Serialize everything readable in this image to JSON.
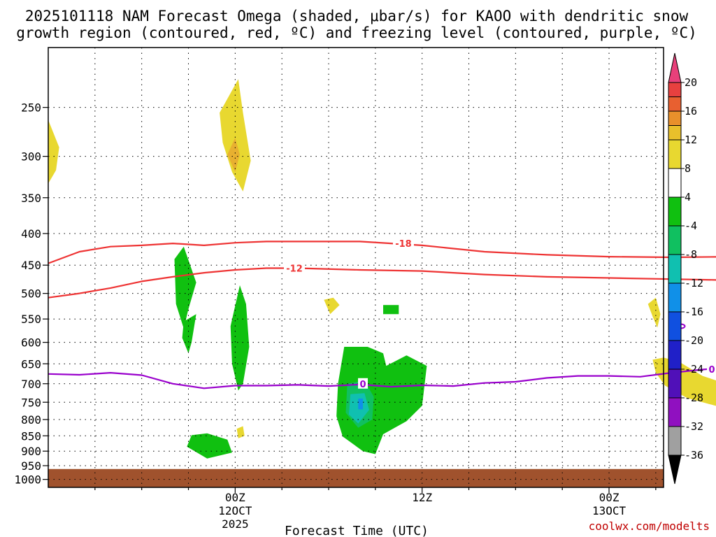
{
  "title_line1": "2025101118 NAM Forecast Omega (shaded, μbar/s) for KAOO with dendritic snow",
  "title_line2": "growth region (contoured, red, ºC) and freezing level (contoured, purple, ºC)",
  "credit": "coolwx.com/modelts",
  "chart_data": {
    "type": "time-height",
    "x_label": "Forecast Time (UTC)",
    "x_range_hours": [
      -12.0,
      27.5
    ],
    "y_label": "Pressure (hPa)",
    "y_range": [
      200,
      1030
    ],
    "y_ticks": [
      250,
      300,
      350,
      400,
      450,
      500,
      550,
      600,
      650,
      700,
      750,
      800,
      850,
      900,
      950,
      1000
    ],
    "x_ticks": [
      {
        "h": 0,
        "l1": "00Z",
        "l2": "12OCT",
        "l3": "2025"
      },
      {
        "h": 12,
        "l1": "12Z",
        "l2": "",
        "l3": ""
      },
      {
        "h": 24,
        "l1": "00Z",
        "l2": "13OCT",
        "l3": ""
      },
      {
        "h": 36,
        "l1": "12Z",
        "l2": "",
        "l3": ""
      },
      {
        "h": 48,
        "l1": "00Z",
        "l2": "14OCT",
        "l3": ""
      },
      {
        "h": 60,
        "l1": "12Z",
        "l2": "",
        "l3": ""
      },
      {
        "h": 72,
        "l1": "00Z",
        "l2": "15OCT",
        "l3": ""
      }
    ],
    "colorbar": {
      "labels": [
        "20",
        "16",
        "12",
        "8",
        "4",
        "-4",
        "-8",
        "-12",
        "-16",
        "-20",
        "-24",
        "-28",
        "-32",
        "-36"
      ],
      "colors": [
        "#e8407a",
        "#e8403f",
        "#e86030",
        "#e8902b",
        "#e8c02b",
        "#e8d830",
        "#ffffff",
        "#10c010",
        "#10c060",
        "#10c0b0",
        "#1090e8",
        "#1050e0",
        "#2020c8",
        "#5010b8",
        "#9010c0",
        "#a0a0a0",
        "#000000"
      ]
    },
    "contours": [
      {
        "name": "-18 °C isotherm",
        "color": "#ee3333",
        "label": "-18",
        "points": [
          [
            -12,
            447
          ],
          [
            -10,
            428
          ],
          [
            -8,
            420
          ],
          [
            -6,
            418
          ],
          [
            -4,
            415
          ],
          [
            -2,
            418
          ],
          [
            0,
            414
          ],
          [
            2,
            412
          ],
          [
            4,
            412
          ],
          [
            8,
            412
          ],
          [
            12,
            418
          ],
          [
            16,
            428
          ],
          [
            20,
            433
          ],
          [
            24,
            436
          ],
          [
            28,
            437
          ],
          [
            32,
            436
          ],
          [
            34,
            434
          ],
          [
            36,
            425
          ],
          [
            37,
            413
          ],
          [
            38.5,
            408
          ],
          [
            40,
            413
          ],
          [
            41.5,
            426
          ],
          [
            43,
            431
          ],
          [
            45,
            425
          ],
          [
            48,
            416
          ],
          [
            50,
            413
          ],
          [
            52,
            415
          ],
          [
            55,
            412
          ],
          [
            58,
            415
          ],
          [
            61,
            414
          ],
          [
            64,
            418
          ],
          [
            68,
            416
          ],
          [
            71,
            422
          ],
          [
            73,
            426
          ],
          [
            75,
            438
          ],
          [
            76.5,
            430
          ],
          [
            78,
            433
          ],
          [
            80,
            428
          ],
          [
            82,
            434
          ],
          [
            84,
            436
          ]
        ]
      },
      {
        "name": "-12 °C isotherm",
        "color": "#ee3333",
        "label": "-12",
        "points": [
          [
            -12,
            508
          ],
          [
            -10,
            500
          ],
          [
            -8,
            490
          ],
          [
            -6,
            478
          ],
          [
            -4,
            470
          ],
          [
            -2,
            463
          ],
          [
            0,
            458
          ],
          [
            2,
            455
          ],
          [
            4,
            455
          ],
          [
            8,
            458
          ],
          [
            12,
            460
          ],
          [
            16,
            466
          ],
          [
            20,
            470
          ],
          [
            24,
            472
          ],
          [
            28,
            474
          ],
          [
            32,
            476
          ],
          [
            36,
            473
          ],
          [
            40,
            476
          ],
          [
            44,
            476
          ],
          [
            48,
            467
          ],
          [
            52,
            460
          ],
          [
            56,
            455
          ],
          [
            60,
            455
          ],
          [
            64,
            458
          ],
          [
            68,
            460
          ],
          [
            72,
            468
          ],
          [
            76,
            472
          ],
          [
            80,
            477
          ],
          [
            84,
            482
          ]
        ]
      },
      {
        "name": "0 °C freezing level",
        "color": "#9900cc",
        "label": "0",
        "points": [
          [
            -12,
            675
          ],
          [
            -10,
            677
          ],
          [
            -8,
            672
          ],
          [
            -6,
            678
          ],
          [
            -4,
            700
          ],
          [
            -2,
            712
          ],
          [
            0,
            705
          ],
          [
            2,
            705
          ],
          [
            4,
            703
          ],
          [
            6,
            706
          ],
          [
            8,
            702
          ],
          [
            10,
            708
          ],
          [
            12,
            704
          ],
          [
            14,
            706
          ],
          [
            16,
            698
          ],
          [
            18,
            695
          ],
          [
            20,
            685
          ],
          [
            22,
            680
          ],
          [
            24,
            680
          ],
          [
            26,
            682
          ],
          [
            28,
            672
          ],
          [
            30,
            664
          ],
          [
            32,
            658
          ],
          [
            34,
            660
          ],
          [
            36,
            657
          ],
          [
            38,
            650
          ],
          [
            40,
            647
          ],
          [
            42,
            642
          ],
          [
            44,
            640
          ],
          [
            46,
            636
          ],
          [
            48,
            620
          ],
          [
            50,
            614
          ],
          [
            52,
            607
          ],
          [
            53.5,
            604
          ],
          [
            54.5,
            616
          ],
          [
            56,
            612
          ],
          [
            58,
            610
          ],
          [
            60,
            608
          ],
          [
            62,
            575
          ],
          [
            64,
            578
          ],
          [
            66,
            583
          ],
          [
            68,
            577
          ],
          [
            70,
            585
          ],
          [
            72,
            583
          ],
          [
            74,
            595
          ],
          [
            76,
            610
          ],
          [
            78,
            620
          ],
          [
            80,
            628
          ],
          [
            82,
            635
          ],
          [
            84,
            640
          ]
        ]
      }
    ],
    "omega_areas": [
      {
        "color": "#e8d830",
        "points": [
          [
            -12,
            262
          ],
          [
            -11.3,
            290
          ],
          [
            -11.5,
            316
          ],
          [
            -12,
            332
          ]
        ]
      },
      {
        "color": "#e8d830",
        "points": [
          [
            -1,
            255
          ],
          [
            0.2,
            225
          ],
          [
            0.5,
            255
          ],
          [
            1,
            305
          ],
          [
            0.5,
            342
          ],
          [
            -0.2,
            318
          ],
          [
            -0.8,
            285
          ]
        ]
      },
      {
        "color": "#e8b030",
        "points": [
          [
            -0.5,
            298
          ],
          [
            0,
            280
          ],
          [
            0.3,
            298
          ],
          [
            0,
            318
          ]
        ]
      },
      {
        "color": "#e8d830",
        "points": [
          [
            0.1,
            828
          ],
          [
            0.5,
            820
          ],
          [
            0.6,
            850
          ],
          [
            0.2,
            858
          ]
        ]
      },
      {
        "color": "#e8d830",
        "points": [
          [
            5.7,
            512
          ],
          [
            6.3,
            508
          ],
          [
            6.7,
            522
          ],
          [
            6.1,
            540
          ]
        ]
      },
      {
        "color": "#e8d830",
        "points": [
          [
            26.5,
            520
          ],
          [
            27,
            508
          ],
          [
            27.3,
            540
          ],
          [
            27.1,
            568
          ],
          [
            26.8,
            545
          ]
        ]
      },
      {
        "color": "#e8d830",
        "points": [
          [
            26.8,
            640
          ],
          [
            27.5,
            635
          ],
          [
            28.5,
            645
          ],
          [
            30,
            680
          ],
          [
            33,
            720
          ],
          [
            34.2,
            712
          ],
          [
            34,
            760
          ],
          [
            31,
            762
          ],
          [
            29,
            738
          ],
          [
            27.6,
            705
          ],
          [
            27,
            672
          ]
        ]
      },
      {
        "color": "#e8d830",
        "points": [
          [
            35.5,
            782
          ],
          [
            36.3,
            780
          ],
          [
            37,
            790
          ],
          [
            36.5,
            800
          ],
          [
            35.7,
            802
          ]
        ]
      },
      {
        "color": "#e8d830",
        "points": [
          [
            52,
            776
          ],
          [
            55.5,
            776
          ],
          [
            55.5,
            800
          ],
          [
            52,
            800
          ]
        ]
      },
      {
        "color": "#e8d830",
        "points": [
          [
            60.2,
            780
          ],
          [
            61,
            775
          ],
          [
            61.5,
            790
          ],
          [
            60.7,
            802
          ],
          [
            60.1,
            797
          ]
        ]
      },
      {
        "color": "#e8d830",
        "points": [
          [
            69.2,
            410
          ],
          [
            70,
            400
          ],
          [
            70.3,
            420
          ],
          [
            69.6,
            437
          ]
        ]
      },
      {
        "color": "#e8d830",
        "points": [
          [
            72.8,
            470
          ],
          [
            73.8,
            442
          ],
          [
            75,
            475
          ],
          [
            74.6,
            500
          ],
          [
            73.5,
            488
          ]
        ]
      },
      {
        "color": "#e8d830",
        "points": [
          [
            76,
            288
          ],
          [
            77,
            275
          ],
          [
            78.5,
            340
          ],
          [
            77.5,
            358
          ],
          [
            76.8,
            315
          ]
        ]
      },
      {
        "color": "#10c010",
        "points": [
          [
            -3.9,
            440
          ],
          [
            -3.3,
            420
          ],
          [
            -2.5,
            480
          ],
          [
            -3,
            530
          ],
          [
            -3.3,
            570
          ],
          [
            -3.8,
            520
          ]
        ]
      },
      {
        "color": "#10c010",
        "points": [
          [
            -3.3,
            555
          ],
          [
            -2.5,
            540
          ],
          [
            -2.8,
            600
          ],
          [
            -3,
            625
          ],
          [
            -3.4,
            590
          ]
        ]
      },
      {
        "color": "#10c010",
        "points": [
          [
            -0.3,
            565
          ],
          [
            0.3,
            485
          ],
          [
            0.7,
            520
          ],
          [
            0.9,
            610
          ],
          [
            0.5,
            700
          ],
          [
            0.2,
            718
          ],
          [
            -0.2,
            650
          ]
        ]
      },
      {
        "color": "#10c010",
        "points": [
          [
            -2.8,
            848
          ],
          [
            -1.8,
            842
          ],
          [
            -0.5,
            862
          ],
          [
            -0.2,
            905
          ],
          [
            -1.8,
            925
          ],
          [
            -3.1,
            885
          ]
        ]
      },
      {
        "color": "#10c010",
        "points": [
          [
            7,
            610
          ],
          [
            8.5,
            610
          ],
          [
            9.5,
            625
          ],
          [
            9.7,
            655
          ],
          [
            11,
            630
          ],
          [
            12.3,
            655
          ],
          [
            12,
            760
          ],
          [
            11,
            805
          ],
          [
            9.5,
            845
          ],
          [
            9,
            910
          ],
          [
            8.2,
            900
          ],
          [
            6.9,
            852
          ],
          [
            6.5,
            790
          ],
          [
            6.6,
            700
          ]
        ]
      },
      {
        "color": "#10c060",
        "points": [
          [
            7.2,
            700
          ],
          [
            8.3,
            692
          ],
          [
            8.9,
            735
          ],
          [
            8.8,
            800
          ],
          [
            7.9,
            825
          ],
          [
            7.1,
            780
          ]
        ]
      },
      {
        "color": "#10c0b0",
        "points": [
          [
            7.4,
            728
          ],
          [
            8.3,
            725
          ],
          [
            8.6,
            772
          ],
          [
            7.9,
            812
          ],
          [
            7.3,
            785
          ]
        ]
      },
      {
        "color": "#1090e8",
        "points": [
          [
            7.9,
            740
          ],
          [
            8.2,
            740
          ],
          [
            8.2,
            770
          ],
          [
            7.9,
            770
          ]
        ]
      },
      {
        "color": "#10c010",
        "points": [
          [
            9.5,
            522
          ],
          [
            10.5,
            522
          ],
          [
            10.5,
            540
          ],
          [
            9.5,
            540
          ]
        ]
      }
    ],
    "contour_labels": [
      {
        "text": "-18",
        "h": 10.8,
        "p": 415,
        "color": "#ee3333"
      },
      {
        "text": "-18",
        "h": 44.3,
        "p": 428,
        "color": "#ee3333"
      },
      {
        "text": "-18",
        "h": 71.2,
        "p": 418,
        "color": "#ee3333"
      },
      {
        "text": "-12",
        "h": 3.8,
        "p": 455,
        "color": "#ee3333"
      },
      {
        "text": "-12",
        "h": 42.0,
        "p": 476,
        "color": "#ee3333"
      },
      {
        "text": "-12",
        "h": 70.0,
        "p": 462,
        "color": "#ee3333"
      },
      {
        "text": "0",
        "h": 8.2,
        "p": 700,
        "color": "#9900cc"
      },
      {
        "text": "0",
        "h": 30.6,
        "p": 663,
        "color": "#9900cc"
      },
      {
        "text": "0",
        "h": 52.0,
        "p": 606,
        "color": "#9900cc"
      }
    ],
    "small_loop": {
      "h": 28.6,
      "p": 565,
      "color": "#9900cc",
      "label": "0"
    },
    "ground": {
      "color": "#a0522d",
      "top_p": 962,
      "bottom_p": 1030
    }
  }
}
